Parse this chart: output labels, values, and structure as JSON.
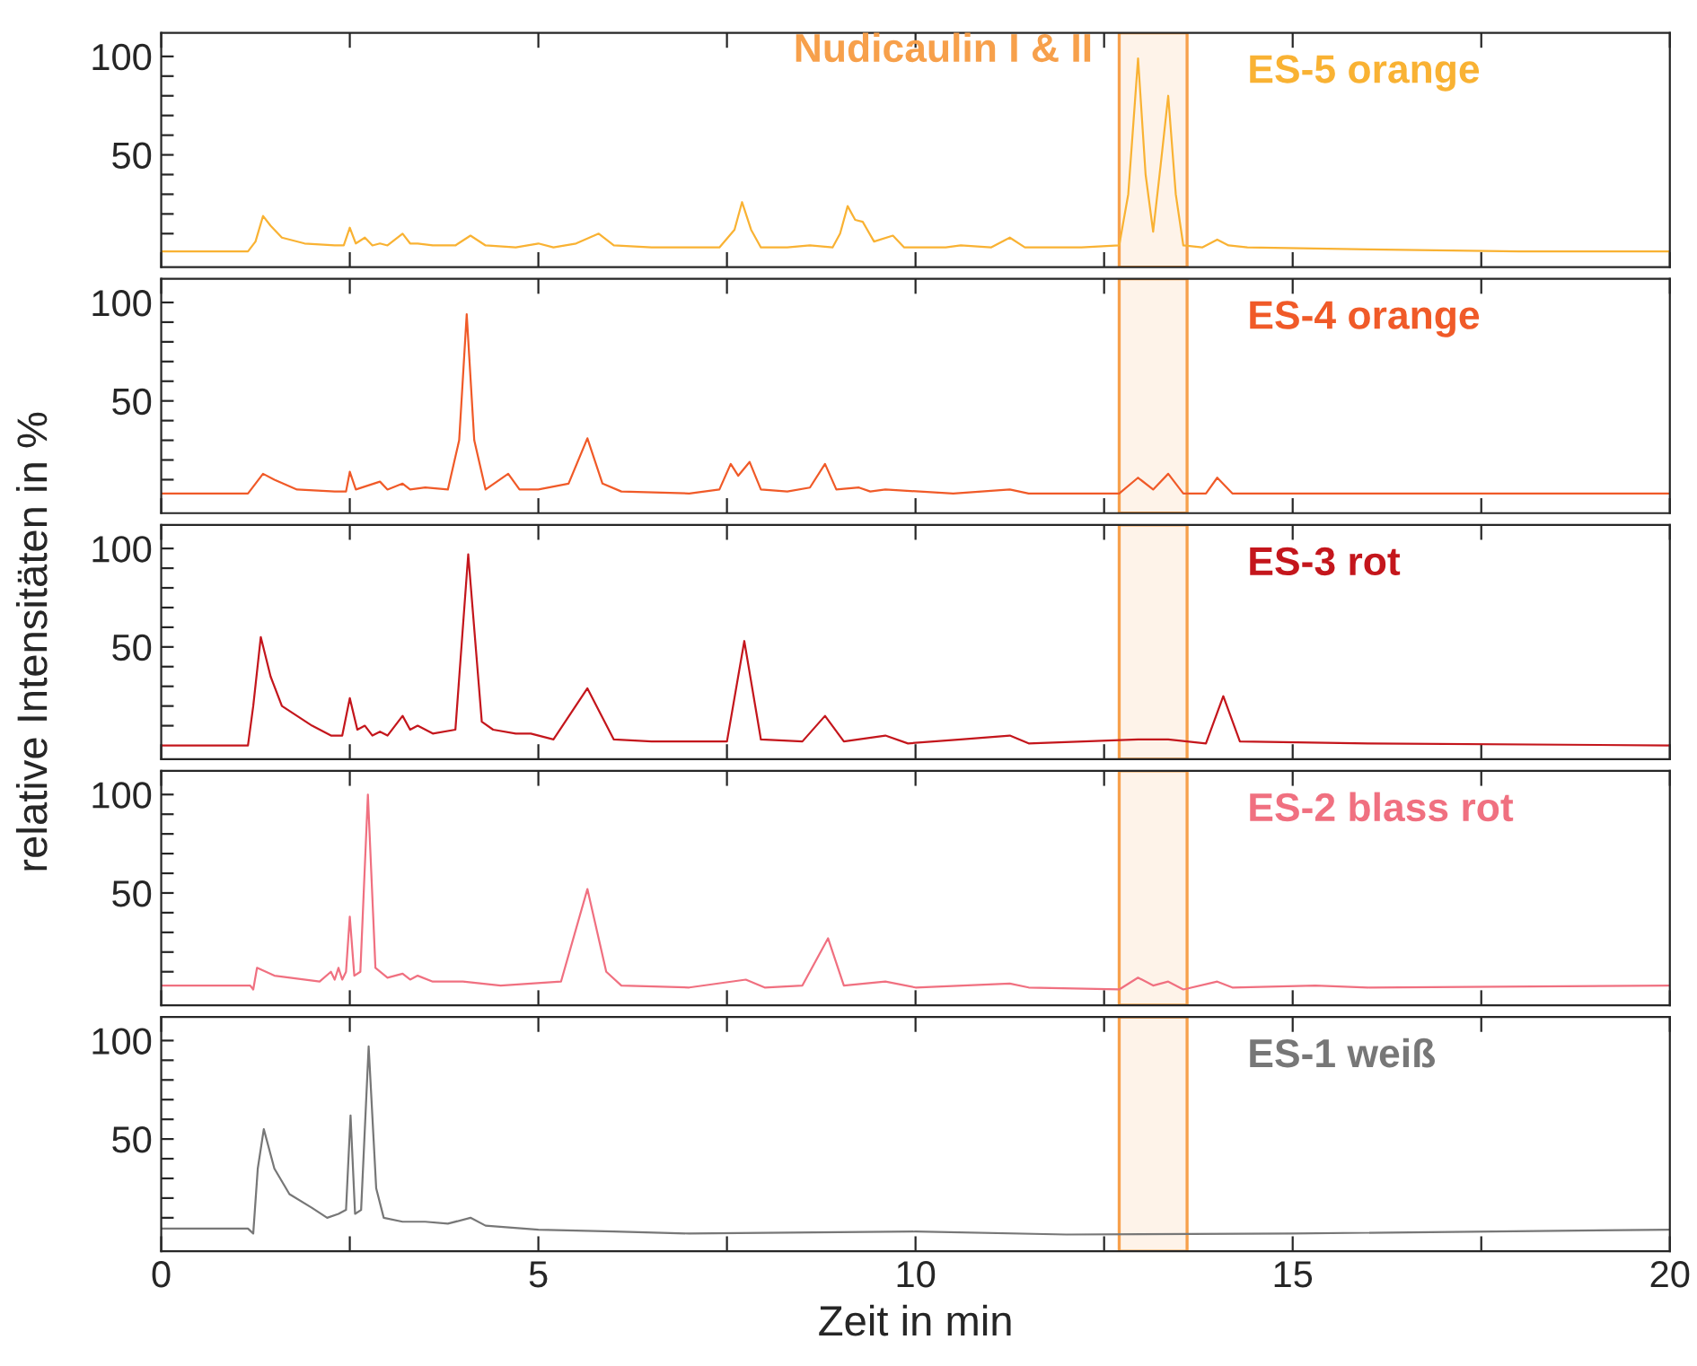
{
  "chart_data": [
    {
      "type": "line",
      "xlim": [
        0,
        20
      ],
      "ylim": [
        -7,
        112
      ],
      "xticks": [
        0,
        {
          "value": 2.5,
          "label": null
        },
        5,
        {
          "value": 7.5,
          "label": null
        },
        10,
        {
          "value": 12.5,
          "label": null
        },
        15,
        {
          "value": 17.5,
          "label": null
        },
        20
      ],
      "yticks": [
        {
          "value": 10,
          "label": null
        },
        {
          "value": 20,
          "label": null
        },
        {
          "value": 30,
          "label": null
        },
        {
          "value": 40,
          "label": null
        },
        50,
        {
          "value": 60,
          "label": null
        },
        {
          "value": 70,
          "label": null
        },
        {
          "value": 80,
          "label": null
        },
        {
          "value": 90,
          "label": null
        },
        100
      ],
      "tick_labels": "y",
      "bands": [
        {
          "axis": "x",
          "from": 12.7,
          "to": 13.6,
          "label": "Nudicaulin I & II",
          "color": "#f7a04b"
        }
      ],
      "series": [
        {
          "name": "ES-5 orange",
          "color": "#f9b233",
          "x": [
            0,
            1.15,
            1.25,
            1.35,
            1.45,
            1.6,
            1.9,
            2.3,
            2.42,
            2.5,
            2.58,
            2.7,
            2.8,
            2.9,
            3.0,
            3.2,
            3.3,
            3.4,
            3.6,
            3.9,
            4.1,
            4.3,
            4.7,
            5.0,
            5.2,
            5.5,
            5.8,
            6.0,
            6.5,
            7.4,
            7.6,
            7.7,
            7.82,
            7.95,
            8.3,
            8.6,
            8.9,
            9.0,
            9.1,
            9.2,
            9.3,
            9.45,
            9.7,
            9.85,
            10.4,
            10.6,
            11.0,
            11.25,
            11.45,
            12.2,
            12.7,
            12.82,
            12.95,
            13.05,
            13.15,
            13.25,
            13.35,
            13.45,
            13.55,
            13.8,
            14.0,
            14.15,
            14.4,
            16,
            18,
            20
          ],
          "values": [
            1,
            1,
            6,
            19,
            14,
            8,
            5,
            4,
            4,
            13,
            5,
            8,
            4,
            5,
            4,
            10,
            5,
            5,
            4,
            4,
            9,
            4,
            3,
            5,
            3,
            5,
            10,
            4,
            3,
            3,
            12,
            26,
            12,
            3,
            3,
            4,
            3,
            10,
            24,
            17,
            16,
            6,
            9,
            3,
            3,
            4,
            3,
            8,
            3,
            3,
            4,
            30,
            99,
            40,
            11,
            45,
            80,
            30,
            4,
            3,
            7,
            4,
            3,
            2,
            1,
            1
          ]
        }
      ]
    },
    {
      "type": "line",
      "xlim": [
        0,
        20
      ],
      "ylim": [
        -7,
        112
      ],
      "xticks": [
        0,
        {
          "value": 2.5,
          "label": null
        },
        5,
        {
          "value": 7.5,
          "label": null
        },
        10,
        {
          "value": 12.5,
          "label": null
        },
        15,
        {
          "value": 17.5,
          "label": null
        },
        20
      ],
      "yticks": [
        {
          "value": 10,
          "label": null
        },
        {
          "value": 20,
          "label": null
        },
        {
          "value": 30,
          "label": null
        },
        {
          "value": 40,
          "label": null
        },
        50,
        {
          "value": 60,
          "label": null
        },
        {
          "value": 70,
          "label": null
        },
        {
          "value": 80,
          "label": null
        },
        {
          "value": 90,
          "label": null
        },
        100
      ],
      "tick_labels": "y",
      "bands": [
        {
          "axis": "x",
          "from": 12.7,
          "to": 13.6,
          "color": "#f7a04b"
        }
      ],
      "series": [
        {
          "name": "ES-4 orange",
          "color": "#f05a28",
          "x": [
            0,
            1.15,
            1.25,
            1.35,
            1.5,
            1.8,
            2.3,
            2.45,
            2.5,
            2.58,
            2.9,
            3.0,
            3.2,
            3.3,
            3.5,
            3.8,
            3.95,
            4.05,
            4.15,
            4.3,
            4.6,
            4.75,
            5.0,
            5.4,
            5.65,
            5.85,
            6.1,
            7.0,
            7.4,
            7.55,
            7.65,
            7.8,
            7.95,
            8.3,
            8.6,
            8.8,
            8.95,
            9.25,
            9.4,
            9.6,
            10.5,
            11.25,
            11.5,
            12.7,
            12.95,
            13.15,
            13.35,
            13.55,
            13.85,
            14.0,
            14.2,
            16,
            20
          ],
          "values": [
            3,
            3,
            8,
            13,
            10,
            5,
            4,
            4,
            14,
            5,
            9,
            5,
            8,
            5,
            6,
            5,
            30,
            94,
            30,
            5,
            13,
            5,
            5,
            8,
            31,
            8,
            4,
            3,
            5,
            18,
            12,
            19,
            5,
            4,
            6,
            18,
            5,
            6,
            4,
            5,
            3,
            5,
            3,
            3,
            11,
            5,
            13,
            3,
            3,
            11,
            3,
            3,
            3
          ]
        }
      ]
    },
    {
      "type": "line",
      "xlim": [
        0,
        20
      ],
      "ylim": [
        -7,
        112
      ],
      "xticks": [
        0,
        {
          "value": 2.5,
          "label": null
        },
        5,
        {
          "value": 7.5,
          "label": null
        },
        10,
        {
          "value": 12.5,
          "label": null
        },
        15,
        {
          "value": 17.5,
          "label": null
        },
        20
      ],
      "yticks": [
        {
          "value": 10,
          "label": null
        },
        {
          "value": 20,
          "label": null
        },
        {
          "value": 30,
          "label": null
        },
        {
          "value": 40,
          "label": null
        },
        50,
        {
          "value": 60,
          "label": null
        },
        {
          "value": 70,
          "label": null
        },
        {
          "value": 80,
          "label": null
        },
        {
          "value": 90,
          "label": null
        },
        100
      ],
      "tick_labels": "y",
      "ylabel": "relative Intensitäten in %",
      "bands": [
        {
          "axis": "x",
          "from": 12.7,
          "to": 13.6,
          "color": "#f7a04b"
        }
      ],
      "series": [
        {
          "name": "ES-3 rot",
          "color": "#c4161c",
          "x": [
            0,
            1.15,
            1.22,
            1.32,
            1.45,
            1.6,
            2.0,
            2.25,
            2.4,
            2.5,
            2.6,
            2.7,
            2.8,
            2.9,
            3.0,
            3.2,
            3.3,
            3.4,
            3.6,
            3.9,
            4.07,
            4.25,
            4.4,
            4.7,
            4.9,
            5.2,
            5.65,
            6.0,
            6.5,
            7.5,
            7.73,
            7.95,
            8.5,
            8.8,
            9.05,
            9.6,
            9.9,
            10.6,
            11.25,
            11.5,
            12.95,
            13.35,
            13.85,
            14.08,
            14.3,
            16,
            20
          ],
          "values": [
            0,
            0,
            20,
            55,
            35,
            20,
            10,
            5,
            5,
            24,
            8,
            10,
            5,
            7,
            5,
            15,
            8,
            10,
            6,
            8,
            97,
            12,
            8,
            6,
            6,
            3,
            29,
            3,
            2,
            2,
            53,
            3,
            2,
            15,
            2,
            5,
            1,
            3,
            5,
            1,
            3,
            3,
            1,
            25,
            2,
            1,
            0
          ]
        }
      ]
    },
    {
      "type": "line",
      "xlim": [
        0,
        20
      ],
      "ylim": [
        -7,
        112
      ],
      "xticks": [
        0,
        {
          "value": 2.5,
          "label": null
        },
        5,
        {
          "value": 7.5,
          "label": null
        },
        10,
        {
          "value": 12.5,
          "label": null
        },
        15,
        {
          "value": 17.5,
          "label": null
        },
        20
      ],
      "yticks": [
        {
          "value": 10,
          "label": null
        },
        {
          "value": 20,
          "label": null
        },
        {
          "value": 30,
          "label": null
        },
        {
          "value": 40,
          "label": null
        },
        50,
        {
          "value": 60,
          "label": null
        },
        {
          "value": 70,
          "label": null
        },
        {
          "value": 80,
          "label": null
        },
        {
          "value": 90,
          "label": null
        },
        100
      ],
      "tick_labels": "y",
      "bands": [
        {
          "axis": "x",
          "from": 12.7,
          "to": 13.6,
          "color": "#f7a04b"
        }
      ],
      "series": [
        {
          "name": "ES-2 blass rot",
          "color": "#f07080",
          "x": [
            0,
            1.18,
            1.22,
            1.27,
            1.5,
            2.1,
            2.25,
            2.3,
            2.35,
            2.4,
            2.45,
            2.5,
            2.56,
            2.64,
            2.74,
            2.84,
            3.0,
            3.2,
            3.3,
            3.4,
            3.6,
            4.0,
            4.5,
            4.9,
            5.3,
            5.65,
            5.9,
            6.1,
            7.0,
            7.75,
            8.0,
            8.5,
            8.84,
            9.05,
            9.6,
            10,
            11.25,
            11.5,
            12.7,
            12.95,
            13.15,
            13.35,
            13.55,
            14.0,
            14.2,
            15.3,
            16,
            20
          ],
          "values": [
            3,
            3,
            1,
            12,
            8,
            5,
            10,
            6,
            12,
            6,
            10,
            38,
            8,
            10,
            100,
            12,
            7,
            9,
            6,
            8,
            5,
            5,
            3,
            4,
            5,
            52,
            10,
            3,
            2,
            6,
            2,
            3,
            27,
            3,
            5,
            2,
            4,
            2,
            1,
            7,
            3,
            5,
            1,
            5,
            2,
            3,
            2,
            3
          ]
        }
      ]
    },
    {
      "type": "line",
      "xlim": [
        0,
        20
      ],
      "ylim": [
        -7,
        112
      ],
      "xticks": [
        0,
        {
          "value": 2.5,
          "label": null
        },
        5,
        {
          "value": 7.5,
          "label": null
        },
        10,
        {
          "value": 12.5,
          "label": null
        },
        15,
        {
          "value": 17.5,
          "label": null
        },
        20
      ],
      "yticks": [
        {
          "value": 10,
          "label": null
        },
        {
          "value": 20,
          "label": null
        },
        {
          "value": 30,
          "label": null
        },
        {
          "value": 40,
          "label": null
        },
        50,
        {
          "value": 60,
          "label": null
        },
        {
          "value": 70,
          "label": null
        },
        {
          "value": 80,
          "label": null
        },
        {
          "value": 90,
          "label": null
        },
        100
      ],
      "xlabel": "Zeit in min",
      "bands": [
        {
          "axis": "x",
          "from": 12.7,
          "to": 13.6,
          "color": "#f7a04b"
        }
      ],
      "series": [
        {
          "name": "ES-1 weiß",
          "color": "#777777",
          "x": [
            0,
            1.15,
            1.22,
            1.28,
            1.36,
            1.5,
            1.7,
            2.0,
            2.2,
            2.35,
            2.45,
            2.51,
            2.57,
            2.65,
            2.75,
            2.85,
            2.95,
            3.2,
            3.5,
            3.8,
            4.1,
            4.3,
            5.0,
            6.0,
            7.0,
            10,
            12,
            15,
            20
          ],
          "values": [
            4.5,
            4.5,
            2,
            35,
            55,
            35,
            22,
            15,
            10,
            12,
            14,
            62,
            12,
            14,
            97,
            25,
            10,
            8,
            8,
            7,
            10,
            6,
            4,
            3,
            2,
            3,
            1.5,
            2,
            4
          ]
        }
      ]
    }
  ]
}
